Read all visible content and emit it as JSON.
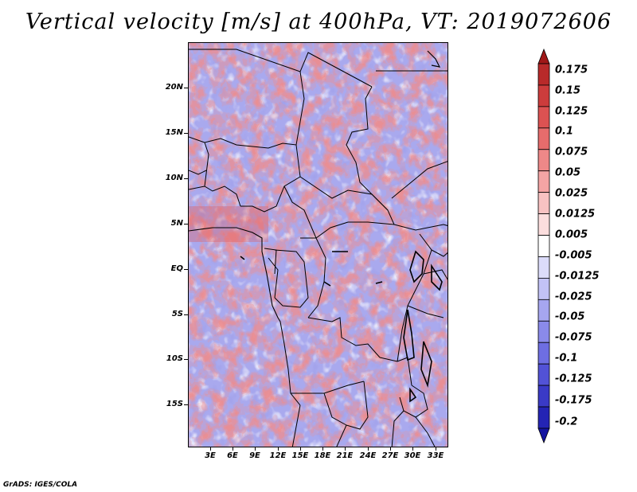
{
  "title": "Vertical velocity [m/s] at 400hPa, VT: 2019072606",
  "footer": "GrADS: IGES/COLA",
  "latitude_labels": [
    "20N",
    "15N",
    "10N",
    "5N",
    "EQ",
    "5S",
    "10S",
    "15S"
  ],
  "longitude_labels": [
    "3E",
    "6E",
    "9E",
    "12E",
    "15E",
    "18E",
    "21E",
    "24E",
    "27E",
    "30E",
    "33E"
  ],
  "colorbar": {
    "labels": [
      "0.175",
      "0.15",
      "0.125",
      "0.1",
      "0.075",
      "0.05",
      "0.025",
      "0.0125",
      "0.005",
      "-0.005",
      "-0.0125",
      "-0.025",
      "-0.05",
      "-0.075",
      "-0.1",
      "-0.125",
      "-0.175",
      "-0.2"
    ],
    "colors": [
      "#a01818",
      "#b82a2a",
      "#cc3c3c",
      "#dc5252",
      "#e66c6c",
      "#ee8888",
      "#f4a4a4",
      "#f8c2c2",
      "#fcdede",
      "#ffffff",
      "#dcdcfa",
      "#c2c2f6",
      "#a6a6f0",
      "#8a8aea",
      "#6e6ee2",
      "#5252d6",
      "#3a3ac6",
      "#2424b4",
      "#1414a0"
    ]
  }
}
